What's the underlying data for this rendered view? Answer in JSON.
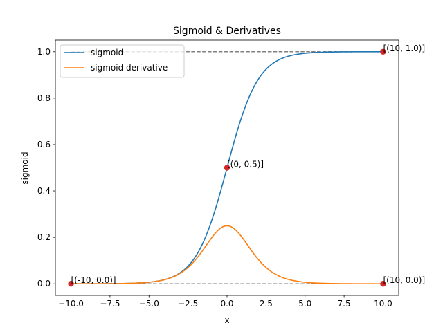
{
  "chart_data": {
    "type": "line",
    "title": "Sigmoid & Derivatives",
    "xlabel": "x",
    "ylabel": "sigmoid",
    "xlim": [
      -11,
      11
    ],
    "ylim": [
      -0.05,
      1.05
    ],
    "x_ticks": [
      -10,
      -7.5,
      -5,
      -2.5,
      0,
      2.5,
      5,
      7.5,
      10
    ],
    "x_tick_labels": [
      "−10.0",
      "−7.5",
      "−5.0",
      "−2.5",
      "0.0",
      "2.5",
      "5.0",
      "7.5",
      "10.0"
    ],
    "y_ticks": [
      0,
      0.2,
      0.4,
      0.6,
      0.8,
      1.0
    ],
    "y_tick_labels": [
      "0.0",
      "0.2",
      "0.4",
      "0.6",
      "0.8",
      "1.0"
    ],
    "grid": false,
    "legend_position": "top-left",
    "series": [
      {
        "name": "sigmoid",
        "function": "sigmoid",
        "x_range": [
          -10,
          10
        ],
        "color": "#1f77b4"
      },
      {
        "name": "sigmoid derivative",
        "function": "sigmoid_derivative",
        "x_range": [
          -10,
          10
        ],
        "color": "#ff7f0e"
      }
    ],
    "reference_lines": [
      {
        "y": 1.0,
        "x_range": [
          -10,
          10
        ],
        "style": "dashed",
        "color": "#808080"
      },
      {
        "y": 0.0,
        "x_range": [
          -10,
          10
        ],
        "style": "dashed",
        "color": "#808080"
      }
    ],
    "points": [
      {
        "x": -10,
        "y": 0.0,
        "label": "[(-10, 0.0)]"
      },
      {
        "x": 0,
        "y": 0.5,
        "label": "[(0, 0.5)]"
      },
      {
        "x": 10,
        "y": 1.0,
        "label": "[(10, 1.0)]"
      },
      {
        "x": 10,
        "y": 0.0,
        "label": "[(10, 0.0)]"
      }
    ],
    "point_color": "#d62728"
  }
}
